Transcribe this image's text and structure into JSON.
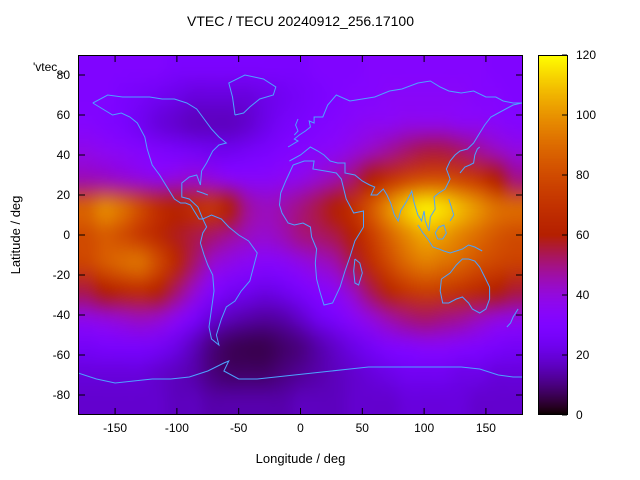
{
  "title": "VTEC / TECU 20240912_256.17100",
  "key_label": "'vtec_",
  "axes": {
    "xlabel": "Longitude / deg",
    "ylabel": "Latitude / deg",
    "x_ticks": [
      -150,
      -100,
      -50,
      0,
      50,
      100,
      150
    ],
    "y_ticks": [
      -80,
      -60,
      -40,
      -20,
      0,
      20,
      40,
      60,
      80
    ],
    "x_range": [
      -180,
      180
    ],
    "y_range": [
      -90,
      90
    ]
  },
  "colorbar": {
    "ticks": [
      0,
      20,
      40,
      60,
      80,
      100,
      120
    ],
    "range": [
      0,
      120
    ],
    "palette": "gnuplot pm3d black-purple-violet-red-orange-yellow"
  },
  "colors": {
    "coastline": "#4da3ff",
    "border": "#000000",
    "background": "#ffffff",
    "text": "#000000"
  },
  "chart_data": {
    "type": "heatmap",
    "title": "VTEC / TECU 20240912_256.17100",
    "xlabel": "Longitude / deg",
    "ylabel": "Latitude / deg",
    "zlabel": "VTEC / TECU",
    "zlim": [
      0,
      120
    ],
    "grid": false,
    "x_lons": [
      -180,
      -165,
      -150,
      -135,
      -120,
      -105,
      -90,
      -75,
      -60,
      -45,
      -30,
      -15,
      0,
      15,
      30,
      45,
      60,
      75,
      90,
      105,
      120,
      135,
      150,
      165,
      180
    ],
    "y_lats": [
      90,
      75,
      60,
      45,
      30,
      15,
      0,
      -15,
      -30,
      -45,
      -60,
      -75,
      -90
    ],
    "values_tecu": [
      [
        30,
        30,
        30,
        30,
        30,
        28,
        28,
        28,
        28,
        28,
        28,
        28,
        28,
        30,
        30,
        30,
        32,
        32,
        32,
        32,
        32,
        32,
        32,
        30,
        30
      ],
      [
        30,
        30,
        28,
        26,
        24,
        22,
        20,
        20,
        20,
        20,
        22,
        24,
        26,
        28,
        30,
        32,
        32,
        34,
        34,
        34,
        34,
        34,
        32,
        32,
        30
      ],
      [
        32,
        30,
        28,
        24,
        20,
        18,
        16,
        16,
        16,
        18,
        22,
        26,
        28,
        30,
        32,
        34,
        36,
        36,
        38,
        38,
        38,
        36,
        36,
        34,
        32
      ],
      [
        38,
        36,
        34,
        32,
        30,
        28,
        26,
        24,
        24,
        26,
        28,
        30,
        32,
        34,
        36,
        40,
        44,
        48,
        52,
        55,
        55,
        52,
        48,
        44,
        40
      ],
      [
        45,
        44,
        42,
        40,
        38,
        40,
        42,
        40,
        36,
        34,
        34,
        36,
        38,
        42,
        46,
        52,
        60,
        70,
        78,
        82,
        82,
        78,
        72,
        60,
        50
      ],
      [
        88,
        98,
        92,
        80,
        68,
        62,
        68,
        72,
        60,
        48,
        44,
        46,
        50,
        55,
        60,
        70,
        85,
        100,
        112,
        118,
        115,
        108,
        100,
        92,
        90
      ],
      [
        80,
        85,
        80,
        72,
        65,
        58,
        55,
        52,
        48,
        44,
        42,
        45,
        50,
        52,
        55,
        62,
        75,
        88,
        98,
        105,
        102,
        96,
        90,
        84,
        80
      ],
      [
        78,
        85,
        90,
        92,
        80,
        65,
        52,
        42,
        38,
        35,
        33,
        34,
        38,
        42,
        46,
        55,
        68,
        80,
        90,
        95,
        92,
        88,
        82,
        78,
        76
      ],
      [
        55,
        60,
        65,
        68,
        62,
        52,
        42,
        32,
        26,
        24,
        22,
        24,
        28,
        32,
        36,
        44,
        54,
        64,
        72,
        76,
        74,
        70,
        65,
        60,
        56
      ],
      [
        38,
        40,
        42,
        44,
        42,
        36,
        28,
        20,
        16,
        14,
        13,
        14,
        18,
        24,
        28,
        34,
        40,
        46,
        50,
        52,
        50,
        48,
        44,
        40,
        38
      ],
      [
        26,
        28,
        28,
        28,
        26,
        22,
        16,
        10,
        7,
        6,
        6,
        8,
        10,
        14,
        18,
        22,
        26,
        30,
        32,
        34,
        34,
        32,
        30,
        28,
        26
      ],
      [
        20,
        20,
        20,
        20,
        18,
        16,
        14,
        10,
        8,
        8,
        8,
        10,
        12,
        14,
        16,
        18,
        20,
        22,
        24,
        24,
        24,
        22,
        22,
        20,
        20
      ],
      [
        18,
        18,
        18,
        18,
        18,
        16,
        16,
        14,
        14,
        14,
        14,
        14,
        16,
        16,
        16,
        18,
        18,
        18,
        20,
        20,
        20,
        20,
        18,
        18,
        18
      ]
    ],
    "map_outlines": [
      [
        [
          -168,
          66
        ],
        [
          -160,
          63
        ],
        [
          -152,
          60
        ],
        [
          -145,
          61
        ],
        [
          -138,
          59
        ],
        [
          -132,
          56
        ],
        [
          -126,
          49
        ],
        [
          -124,
          43
        ],
        [
          -120,
          35
        ],
        [
          -114,
          30
        ],
        [
          -108,
          24
        ],
        [
          -102,
          18
        ],
        [
          -97,
          16
        ],
        [
          -93,
          16
        ],
        [
          -89,
          15
        ],
        [
          -85,
          11
        ],
        [
          -82,
          8
        ],
        [
          -79,
          8
        ],
        [
          -83,
          14
        ],
        [
          -90,
          18
        ],
        [
          -96,
          19
        ],
        [
          -96,
          26
        ],
        [
          -90,
          29
        ],
        [
          -84,
          30
        ],
        [
          -81,
          25
        ],
        [
          -80,
          32
        ],
        [
          -76,
          36
        ],
        [
          -71,
          42
        ],
        [
          -66,
          45
        ],
        [
          -60,
          46
        ],
        [
          -66,
          49
        ],
        [
          -72,
          53
        ],
        [
          -78,
          58
        ],
        [
          -84,
          63
        ],
        [
          -92,
          66
        ],
        [
          -102,
          68
        ],
        [
          -112,
          68
        ],
        [
          -122,
          69
        ],
        [
          -133,
          69
        ],
        [
          -144,
          69
        ],
        [
          -156,
          70
        ],
        [
          -168,
          66
        ]
      ],
      [
        [
          -53,
          60
        ],
        [
          -46,
          61
        ],
        [
          -41,
          64
        ],
        [
          -33,
          68
        ],
        [
          -22,
          70
        ],
        [
          -20,
          74
        ],
        [
          -30,
          78
        ],
        [
          -45,
          80
        ],
        [
          -58,
          76
        ],
        [
          -55,
          69
        ],
        [
          -53,
          60
        ]
      ],
      [
        [
          -79,
          8
        ],
        [
          -76,
          4
        ],
        [
          -79,
          1
        ],
        [
          -81,
          -4
        ],
        [
          -78,
          -10
        ],
        [
          -75,
          -15
        ],
        [
          -71,
          -20
        ],
        [
          -70,
          -28
        ],
        [
          -72,
          -37
        ],
        [
          -74,
          -46
        ],
        [
          -72,
          -52
        ],
        [
          -66,
          -55
        ],
        [
          -68,
          -50
        ],
        [
          -64,
          -42
        ],
        [
          -60,
          -36
        ],
        [
          -53,
          -33
        ],
        [
          -48,
          -28
        ],
        [
          -41,
          -23
        ],
        [
          -38,
          -16
        ],
        [
          -35,
          -9
        ],
        [
          -42,
          -3
        ],
        [
          -50,
          0
        ],
        [
          -58,
          4
        ],
        [
          -64,
          8
        ],
        [
          -72,
          10
        ],
        [
          -79,
          8
        ]
      ],
      [
        [
          -6,
          35
        ],
        [
          3,
          37
        ],
        [
          11,
          37
        ],
        [
          10,
          33
        ],
        [
          20,
          32
        ],
        [
          29,
          31
        ],
        [
          33,
          28
        ],
        [
          37,
          18
        ],
        [
          43,
          11
        ],
        [
          51,
          12
        ],
        [
          51,
          4
        ],
        [
          44,
          -3
        ],
        [
          40,
          -11
        ],
        [
          36,
          -18
        ],
        [
          32,
          -26
        ],
        [
          26,
          -34
        ],
        [
          19,
          -35
        ],
        [
          16,
          -29
        ],
        [
          13,
          -22
        ],
        [
          12,
          -14
        ],
        [
          13,
          -7
        ],
        [
          9,
          -1
        ],
        [
          8,
          4
        ],
        [
          2,
          6
        ],
        [
          -5,
          5
        ],
        [
          -10,
          6
        ],
        [
          -15,
          11
        ],
        [
          -17,
          15
        ],
        [
          -16,
          21
        ],
        [
          -12,
          27
        ],
        [
          -9,
          31
        ],
        [
          -6,
          35
        ]
      ],
      [
        [
          -10,
          44
        ],
        [
          -2,
          47
        ],
        [
          -5,
          48
        ],
        [
          -1,
          50
        ],
        [
          4,
          52
        ],
        [
          8,
          54
        ],
        [
          7,
          57
        ],
        [
          11,
          56
        ],
        [
          11,
          59
        ],
        [
          18,
          59
        ],
        [
          22,
          65
        ],
        [
          29,
          70
        ],
        [
          40,
          67
        ],
        [
          50,
          68
        ],
        [
          60,
          69
        ],
        [
          72,
          72
        ],
        [
          82,
          73
        ],
        [
          95,
          76
        ],
        [
          105,
          77
        ],
        [
          113,
          74
        ],
        [
          120,
          72
        ],
        [
          130,
          71
        ],
        [
          140,
          72
        ],
        [
          150,
          69
        ],
        [
          158,
          69
        ],
        [
          164,
          67
        ],
        [
          172,
          66
        ],
        [
          180,
          66
        ]
      ],
      [
        [
          -9,
          37
        ],
        [
          0,
          40
        ],
        [
          8,
          44
        ],
        [
          14,
          42
        ],
        [
          19,
          40
        ],
        [
          24,
          37
        ],
        [
          30,
          36
        ],
        [
          36,
          36
        ],
        [
          36,
          31
        ],
        [
          44,
          30
        ],
        [
          50,
          27
        ],
        [
          56,
          25
        ],
        [
          60,
          24
        ],
        [
          57,
          20
        ],
        [
          62,
          20
        ],
        [
          67,
          23
        ],
        [
          70,
          20
        ],
        [
          73,
          16
        ],
        [
          76,
          10
        ],
        [
          79,
          7
        ],
        [
          81,
          12
        ],
        [
          86,
          17
        ],
        [
          90,
          22
        ],
        [
          92,
          16
        ],
        [
          95,
          10
        ],
        [
          98,
          7
        ],
        [
          100,
          12
        ],
        [
          101,
          7
        ],
        [
          104,
          2
        ],
        [
          105,
          9
        ],
        [
          109,
          13
        ],
        [
          108,
          19
        ],
        [
          112,
          21
        ],
        [
          117,
          23
        ],
        [
          121,
          28
        ],
        [
          118,
          33
        ],
        [
          121,
          37
        ],
        [
          125,
          40
        ],
        [
          129,
          42
        ],
        [
          135,
          43
        ],
        [
          140,
          46
        ],
        [
          144,
          50
        ],
        [
          149,
          55
        ],
        [
          154,
          59
        ],
        [
          160,
          61
        ],
        [
          166,
          63
        ],
        [
          172,
          65
        ],
        [
          179,
          66
        ]
      ],
      [
        [
          -5,
          50
        ],
        [
          -2,
          52
        ],
        [
          -4,
          55
        ],
        [
          -2,
          58
        ]
      ],
      [
        [
          129,
          31
        ],
        [
          133,
          34
        ],
        [
          137,
          35
        ],
        [
          140,
          36
        ],
        [
          141,
          40
        ],
        [
          143,
          43
        ],
        [
          145,
          44
        ]
      ],
      [
        [
          120,
          18
        ],
        [
          122,
          14
        ],
        [
          124,
          10
        ],
        [
          121,
          7
        ]
      ],
      [
        [
          95,
          5
        ],
        [
          99,
          1
        ],
        [
          103,
          -2
        ],
        [
          107,
          -6
        ],
        [
          112,
          -7
        ],
        [
          116,
          -8
        ],
        [
          121,
          -9
        ],
        [
          126,
          -8
        ],
        [
          131,
          -7
        ],
        [
          136,
          -5
        ],
        [
          141,
          -6
        ],
        [
          147,
          -8
        ]
      ],
      [
        [
          109,
          1
        ],
        [
          112,
          4
        ],
        [
          116,
          5
        ],
        [
          118,
          1
        ],
        [
          115,
          -2
        ],
        [
          111,
          -2
        ],
        [
          109,
          1
        ]
      ],
      [
        [
          44,
          -12
        ],
        [
          48,
          -14
        ],
        [
          50,
          -19
        ],
        [
          47,
          -25
        ],
        [
          44,
          -24
        ],
        [
          43,
          -18
        ],
        [
          44,
          -12
        ]
      ],
      [
        [
          114,
          -22
        ],
        [
          113,
          -28
        ],
        [
          115,
          -34
        ],
        [
          120,
          -34
        ],
        [
          126,
          -32
        ],
        [
          131,
          -31
        ],
        [
          136,
          -34
        ],
        [
          139,
          -37
        ],
        [
          145,
          -39
        ],
        [
          150,
          -37
        ],
        [
          153,
          -32
        ],
        [
          153,
          -26
        ],
        [
          149,
          -21
        ],
        [
          145,
          -16
        ],
        [
          141,
          -13
        ],
        [
          136,
          -12
        ],
        [
          131,
          -12
        ],
        [
          126,
          -15
        ],
        [
          121,
          -19
        ],
        [
          114,
          -22
        ]
      ],
      [
        [
          167,
          -46
        ],
        [
          170,
          -44
        ],
        [
          172,
          -41
        ],
        [
          174,
          -39
        ],
        [
          176,
          -37
        ]
      ],
      [
        [
          -84,
          22
        ],
        [
          -79,
          21
        ],
        [
          -75,
          20
        ]
      ],
      [
        [
          -180,
          -69
        ],
        [
          -165,
          -72
        ],
        [
          -150,
          -74
        ],
        [
          -135,
          -73
        ],
        [
          -120,
          -72
        ],
        [
          -105,
          -72
        ],
        [
          -90,
          -71
        ],
        [
          -75,
          -68
        ],
        [
          -62,
          -64
        ],
        [
          -58,
          -63
        ],
        [
          -62,
          -68
        ],
        [
          -50,
          -72
        ],
        [
          -35,
          -72
        ],
        [
          -20,
          -71
        ],
        [
          -5,
          -70
        ],
        [
          10,
          -69
        ],
        [
          25,
          -68
        ],
        [
          40,
          -67
        ],
        [
          55,
          -66
        ],
        [
          70,
          -66
        ],
        [
          85,
          -66
        ],
        [
          100,
          -66
        ],
        [
          115,
          -66
        ],
        [
          130,
          -66
        ],
        [
          145,
          -67
        ],
        [
          160,
          -70
        ],
        [
          172,
          -71
        ],
        [
          180,
          -71
        ]
      ]
    ]
  }
}
